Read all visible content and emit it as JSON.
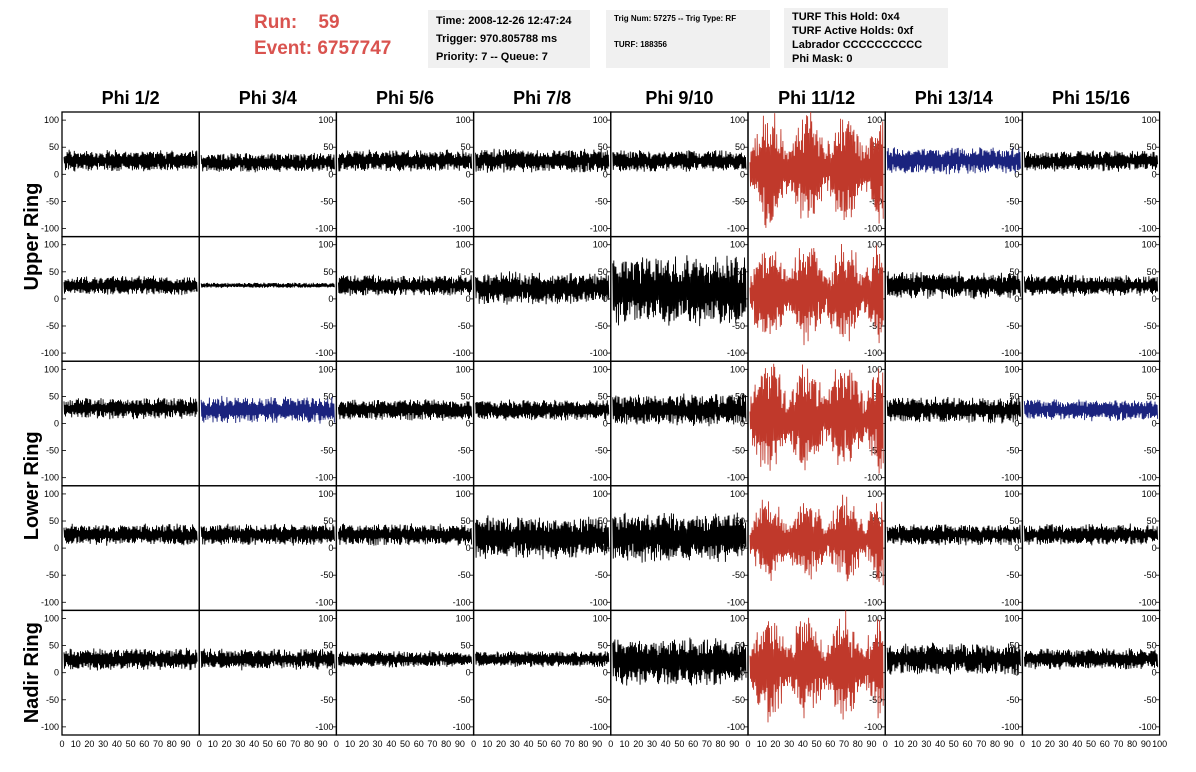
{
  "header": {
    "run_label": "Run:",
    "run_value": "59",
    "event_label": "Event:",
    "event_value": "6757747",
    "time_box": {
      "time": "Time: 2008-12-26 12:47:24",
      "trigger": "Trigger: 970.805788 ms",
      "priority": "Priority: 7 -- Queue: 7"
    },
    "trig_box": {
      "trig": "Trig Num: 57275 -- Trig Type: RF",
      "turf": "TURF: 188356"
    },
    "turf_box": {
      "hold": "TURF This Hold: 0x4",
      "active": "TURF Active Holds: 0xf",
      "labrador": "Labrador CCCCCCCCCC",
      "phimask": "Phi Mask: 0"
    }
  },
  "chart_data": {
    "type": "line",
    "columns": [
      "Phi 1/2",
      "Phi 3/4",
      "Phi 5/6",
      "Phi 7/8",
      "Phi 9/10",
      "Phi 11/12",
      "Phi 13/14",
      "Phi 15/16"
    ],
    "rows": [
      "Upper Ring",
      "Lower Ring",
      "Nadir Ring"
    ],
    "ylim": [
      -115,
      115
    ],
    "yticks": [
      -100,
      -50,
      0,
      50,
      100
    ],
    "xlim": [
      0,
      100
    ],
    "xtick_labels": [
      "0",
      "10",
      "20",
      "30",
      "40",
      "50",
      "60",
      "70",
      "80",
      "90",
      "100"
    ],
    "colors": {
      "normal": "#000000",
      "triggered": "#c0392b",
      "masked": "#1a237e"
    },
    "panels": [
      {
        "row": 0,
        "col": 0,
        "offset": 25,
        "amp": 20,
        "color": "normal"
      },
      {
        "row": 0,
        "col": 1,
        "offset": 22,
        "amp": 18,
        "color": "normal"
      },
      {
        "row": 0,
        "col": 2,
        "offset": 25,
        "amp": 20,
        "color": "normal"
      },
      {
        "row": 0,
        "col": 3,
        "offset": 25,
        "amp": 22,
        "color": "normal"
      },
      {
        "row": 0,
        "col": 4,
        "offset": 25,
        "amp": 20,
        "color": "normal"
      },
      {
        "row": 0,
        "col": 5,
        "offset": 10,
        "amp": 100,
        "color": "triggered"
      },
      {
        "row": 0,
        "col": 6,
        "offset": 25,
        "amp": 25,
        "color": "masked"
      },
      {
        "row": 0,
        "col": 7,
        "offset": 25,
        "amp": 20,
        "color": "normal"
      },
      {
        "row": 1,
        "col": 0,
        "offset": 25,
        "amp": 18,
        "color": "normal"
      },
      {
        "row": 1,
        "col": 1,
        "offset": 25,
        "amp": 5,
        "color": "normal"
      },
      {
        "row": 1,
        "col": 2,
        "offset": 25,
        "amp": 20,
        "color": "normal"
      },
      {
        "row": 1,
        "col": 3,
        "offset": 20,
        "amp": 30,
        "color": "normal"
      },
      {
        "row": 1,
        "col": 4,
        "offset": 15,
        "amp": 65,
        "color": "normal"
      },
      {
        "row": 1,
        "col": 5,
        "offset": 10,
        "amp": 90,
        "color": "triggered"
      },
      {
        "row": 1,
        "col": 6,
        "offset": 25,
        "amp": 25,
        "color": "normal"
      },
      {
        "row": 1,
        "col": 7,
        "offset": 25,
        "amp": 20,
        "color": "normal"
      },
      {
        "row": 2,
        "col": 0,
        "offset": 28,
        "amp": 20,
        "color": "normal"
      },
      {
        "row": 2,
        "col": 1,
        "offset": 25,
        "amp": 25,
        "color": "masked"
      },
      {
        "row": 2,
        "col": 2,
        "offset": 25,
        "amp": 20,
        "color": "normal"
      },
      {
        "row": 2,
        "col": 3,
        "offset": 25,
        "amp": 20,
        "color": "normal"
      },
      {
        "row": 2,
        "col": 4,
        "offset": 25,
        "amp": 30,
        "color": "normal"
      },
      {
        "row": 2,
        "col": 5,
        "offset": 10,
        "amp": 100,
        "color": "triggered"
      },
      {
        "row": 2,
        "col": 6,
        "offset": 25,
        "amp": 25,
        "color": "normal"
      },
      {
        "row": 2,
        "col": 7,
        "offset": 25,
        "amp": 20,
        "color": "masked"
      },
      {
        "row": 3,
        "col": 0,
        "offset": 25,
        "amp": 20,
        "color": "normal"
      },
      {
        "row": 3,
        "col": 1,
        "offset": 25,
        "amp": 20,
        "color": "normal"
      },
      {
        "row": 3,
        "col": 2,
        "offset": 25,
        "amp": 20,
        "color": "normal"
      },
      {
        "row": 3,
        "col": 3,
        "offset": 20,
        "amp": 40,
        "color": "normal"
      },
      {
        "row": 3,
        "col": 4,
        "offset": 20,
        "amp": 45,
        "color": "normal"
      },
      {
        "row": 3,
        "col": 5,
        "offset": 15,
        "amp": 75,
        "color": "triggered"
      },
      {
        "row": 3,
        "col": 6,
        "offset": 25,
        "amp": 20,
        "color": "normal"
      },
      {
        "row": 3,
        "col": 7,
        "offset": 25,
        "amp": 20,
        "color": "normal"
      },
      {
        "row": 4,
        "col": 0,
        "offset": 25,
        "amp": 20,
        "color": "normal"
      },
      {
        "row": 4,
        "col": 1,
        "offset": 25,
        "amp": 20,
        "color": "normal"
      },
      {
        "row": 4,
        "col": 2,
        "offset": 25,
        "amp": 15,
        "color": "normal"
      },
      {
        "row": 4,
        "col": 3,
        "offset": 25,
        "amp": 15,
        "color": "normal"
      },
      {
        "row": 4,
        "col": 4,
        "offset": 20,
        "amp": 45,
        "color": "normal"
      },
      {
        "row": 4,
        "col": 5,
        "offset": 10,
        "amp": 95,
        "color": "triggered"
      },
      {
        "row": 4,
        "col": 6,
        "offset": 25,
        "amp": 30,
        "color": "normal"
      },
      {
        "row": 4,
        "col": 7,
        "offset": 25,
        "amp": 20,
        "color": "normal"
      }
    ]
  }
}
